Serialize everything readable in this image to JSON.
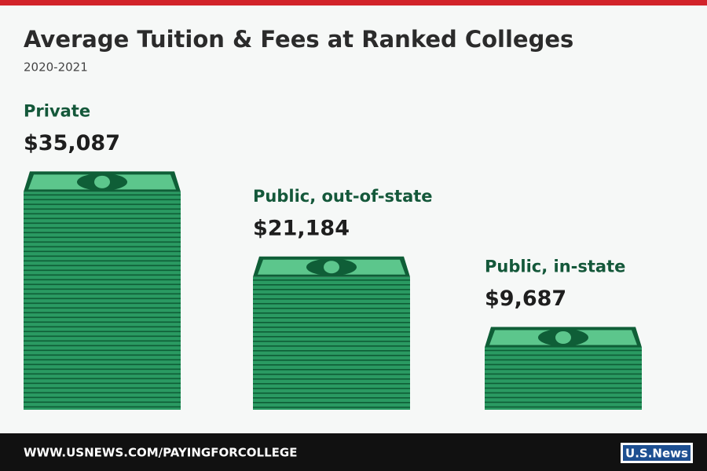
{
  "chart_data": {
    "type": "bar",
    "title": "Average Tuition & Fees at Ranked Colleges",
    "subtitle": "2020-2021",
    "categories": [
      "Private",
      "Public, out-of-state",
      "Public, in-state"
    ],
    "values": [
      35087,
      21184,
      9687
    ],
    "value_labels": [
      "$35,087",
      "$21,184",
      "$9,687"
    ],
    "color": "#2a9a62"
  },
  "footer": {
    "url": "WWW.USNEWS.COM/PAYINGFORCOLLEGE",
    "logo": "U.S.News"
  }
}
